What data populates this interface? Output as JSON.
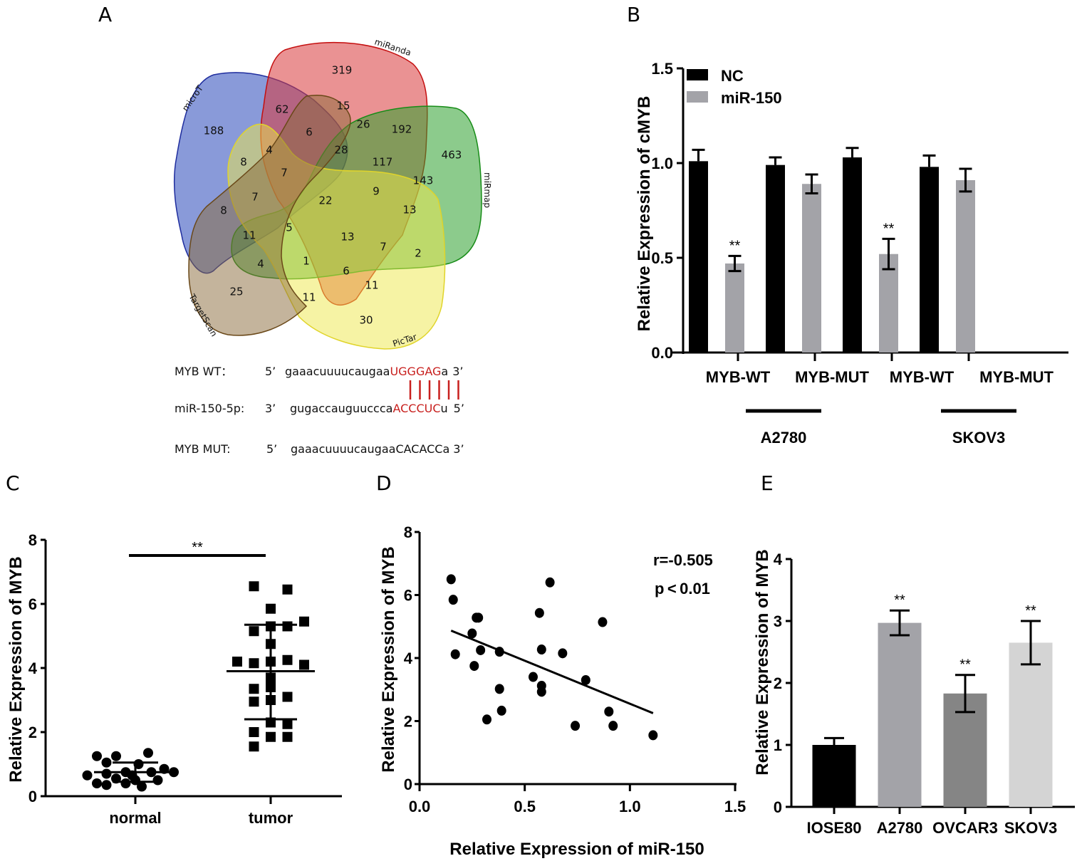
{
  "panels": {
    "A": {
      "letter": "A",
      "venn": {
        "sets": [
          {
            "name": "microT",
            "color": "#3a56c0"
          },
          {
            "name": "miRanda",
            "color": "#d9383a"
          },
          {
            "name": "miRmap",
            "color": "#2ea02e"
          },
          {
            "name": "PicTar",
            "color": "#eee84a"
          },
          {
            "name": "TargetScan",
            "color": "#8a6a3a"
          }
        ],
        "region_counts": [
          "319",
          "62",
          "15",
          "188",
          "6",
          "26",
          "192",
          "463",
          "8",
          "4",
          "28",
          "117",
          "143",
          "7",
          "7",
          "22",
          "9",
          "8",
          "13",
          "11",
          "5",
          "13",
          "4",
          "1",
          "7",
          "2",
          "6",
          "11",
          "25",
          "11",
          "30"
        ]
      },
      "sequences": {
        "wt": {
          "label": "MYB WT：",
          "prime5": "5’",
          "seq_plain": "gaaacuuuucaugaa",
          "seq_highlight": "UGGGAG",
          "seq_tail": "a",
          "prime3": "3’"
        },
        "mir": {
          "label": "miR-150-5p:",
          "prime3": "3’",
          "seq_plain": "gugaccauguuccca",
          "seq_highlight": "ACCCUC",
          "seq_tail": "u",
          "prime5": "5’"
        },
        "mut": {
          "label": "MYB MUT:",
          "prime5": "5’",
          "seq": "gaaacuuuucaugaaCACACCa",
          "prime3": "3’"
        },
        "highlight_color": "#c8201e",
        "pairing_lines": 6
      }
    },
    "B": {
      "letter": "B"
    },
    "C": {
      "letter": "C"
    },
    "D": {
      "letter": "D"
    },
    "E": {
      "letter": "E"
    }
  },
  "chart_data": [
    {
      "id": "B",
      "type": "bar",
      "title": "",
      "ylabel": "Relative Expression of cMYB",
      "xlabel": "",
      "ylim": [
        0,
        1.5
      ],
      "yticks": [
        "0.0",
        "0.5",
        "1.0",
        "1.5"
      ],
      "categories": [
        "MYB-WT",
        "MYB-MUT",
        "MYB-WT",
        "MYB-MUT"
      ],
      "groups": [
        {
          "label": "A2780",
          "span": [
            0,
            1
          ]
        },
        {
          "label": "SKOV3",
          "span": [
            2,
            3
          ]
        }
      ],
      "legend": "top-left",
      "series": [
        {
          "name": "NC",
          "color": "#000000",
          "values": [
            1.01,
            0.99,
            1.03,
            0.98
          ],
          "errors": [
            0.06,
            0.04,
            0.05,
            0.06
          ],
          "sig": [
            "",
            "",
            "",
            ""
          ]
        },
        {
          "name": "miR-150",
          "color": "#a3a3a8",
          "values": [
            0.47,
            0.89,
            0.52,
            0.91
          ],
          "errors": [
            0.04,
            0.05,
            0.08,
            0.06
          ],
          "sig": [
            "**",
            "",
            "**",
            ""
          ]
        }
      ]
    },
    {
      "id": "C",
      "type": "scatter",
      "ylabel": "Relative Expression of MYB",
      "xlabel": "",
      "ylim": [
        0,
        8
      ],
      "yticks": [
        "0",
        "2",
        "4",
        "6",
        "8"
      ],
      "categories": [
        "normal",
        "tumor"
      ],
      "significance": "**",
      "groups": [
        {
          "name": "normal",
          "marker": "circle",
          "mean": 0.75,
          "sd_upper": 1.05,
          "sd_lower": 0.45,
          "points": [
            [
              -0.6,
              1.25
            ],
            [
              -0.3,
              1.25
            ],
            [
              0.2,
              1.35
            ],
            [
              -0.45,
              1.05
            ],
            [
              0.05,
              1.0
            ],
            [
              -0.75,
              0.65
            ],
            [
              -0.45,
              0.7
            ],
            [
              -0.15,
              0.75
            ],
            [
              0.25,
              0.75
            ],
            [
              0.6,
              0.75
            ],
            [
              -0.6,
              0.4
            ],
            [
              -0.3,
              0.55
            ],
            [
              0.0,
              0.5
            ],
            [
              0.35,
              0.5
            ],
            [
              -0.15,
              0.4
            ],
            [
              0.1,
              0.3
            ],
            [
              -0.45,
              0.35
            ],
            [
              0.45,
              0.85
            ],
            [
              -0.05,
              0.65
            ]
          ]
        },
        {
          "name": "tumor",
          "marker": "square",
          "mean": 3.9,
          "sd_upper": 5.35,
          "sd_lower": 2.4,
          "points": [
            [
              -0.25,
              6.55
            ],
            [
              0.25,
              6.45
            ],
            [
              0.0,
              5.85
            ],
            [
              0.5,
              5.45
            ],
            [
              -0.25,
              5.15
            ],
            [
              0.0,
              5.3
            ],
            [
              0.25,
              5.3
            ],
            [
              0.0,
              4.75
            ],
            [
              -0.5,
              4.2
            ],
            [
              -0.25,
              4.15
            ],
            [
              0.0,
              4.2
            ],
            [
              0.25,
              4.25
            ],
            [
              0.5,
              4.1
            ],
            [
              0.0,
              3.7
            ],
            [
              -0.25,
              3.35
            ],
            [
              0.0,
              3.4
            ],
            [
              -0.25,
              2.95
            ],
            [
              0.0,
              3.0
            ],
            [
              0.25,
              3.1
            ],
            [
              0.0,
              2.3
            ],
            [
              0.25,
              2.25
            ],
            [
              -0.25,
              2.0
            ],
            [
              0.0,
              1.85
            ],
            [
              0.25,
              1.85
            ],
            [
              -0.25,
              1.55
            ]
          ]
        }
      ]
    },
    {
      "id": "D",
      "type": "scatter",
      "xlabel": "Relative Expression of miR-150",
      "ylabel": "Relative Expression of MYB",
      "xlim": [
        0,
        1.5
      ],
      "ylim": [
        0,
        8
      ],
      "xticks": [
        "0.0",
        "0.5",
        "1.0",
        "1.5"
      ],
      "yticks": [
        "0",
        "2",
        "4",
        "6",
        "8"
      ],
      "annotations": [
        "r=-0.505",
        "p < 0.01"
      ],
      "fit_line": {
        "x": [
          0.15,
          1.11
        ],
        "y": [
          4.87,
          2.25
        ]
      },
      "points": [
        [
          0.15,
          6.5
        ],
        [
          0.16,
          5.85
        ],
        [
          0.17,
          4.12
        ],
        [
          0.25,
          4.78
        ],
        [
          0.27,
          5.28
        ],
        [
          0.28,
          5.28
        ],
        [
          0.26,
          3.75
        ],
        [
          0.29,
          4.25
        ],
        [
          0.32,
          2.05
        ],
        [
          0.38,
          4.2
        ],
        [
          0.38,
          3.02
        ],
        [
          0.39,
          2.33
        ],
        [
          0.54,
          3.4
        ],
        [
          0.57,
          5.43
        ],
        [
          0.58,
          4.27
        ],
        [
          0.58,
          3.12
        ],
        [
          0.58,
          2.93
        ],
        [
          0.62,
          6.4
        ],
        [
          0.68,
          4.15
        ],
        [
          0.74,
          1.85
        ],
        [
          0.79,
          3.3
        ],
        [
          0.87,
          5.14
        ],
        [
          0.9,
          2.3
        ],
        [
          0.92,
          1.85
        ],
        [
          1.11,
          1.55
        ]
      ]
    },
    {
      "id": "E",
      "type": "bar",
      "ylabel": "Relative Expression of  MYB",
      "xlabel": "",
      "ylim": [
        0,
        4
      ],
      "yticks": [
        "0",
        "1",
        "2",
        "3",
        "4"
      ],
      "categories": [
        "IOSE80",
        "A2780",
        "OVCAR3",
        "SKOV3"
      ],
      "values": [
        1.0,
        2.97,
        1.83,
        2.65
      ],
      "errors": [
        0.11,
        0.2,
        0.3,
        0.35
      ],
      "colors": [
        "#000000",
        "#a3a3a8",
        "#858585",
        "#d4d4d4"
      ],
      "sig": [
        "",
        "**",
        "**",
        "**"
      ]
    }
  ]
}
